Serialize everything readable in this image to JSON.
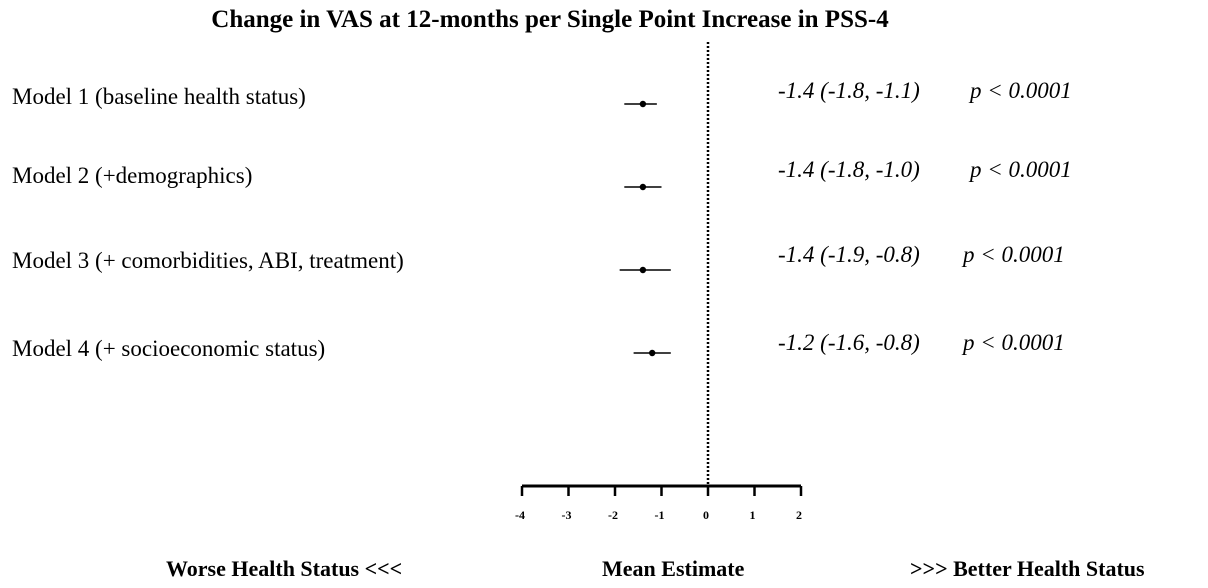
{
  "title": "Change in VAS at 12-months per Single Point Increase in PSS-4",
  "footer": {
    "left": "Worse Health Status <<<",
    "center": "Mean Estimate",
    "right": ">>> Better Health Status"
  },
  "chart_data": {
    "type": "forest",
    "title": "Change in VAS at 12-months per Single Point Increase in PSS-4",
    "xlim": [
      -4,
      2
    ],
    "xticks": [
      -4,
      -3,
      -2,
      -1,
      0,
      1,
      2
    ],
    "reference_line": 0,
    "xlabel": "Mean Estimate",
    "rows": [
      {
        "label": "Model 1 (baseline health status)",
        "estimate": -1.4,
        "lower": -1.8,
        "upper": -1.1,
        "ci_text": "-1.4 (-1.8, -1.1)",
        "p_text": "p < 0.0001"
      },
      {
        "label": "Model 2 (+demographics)",
        "estimate": -1.4,
        "lower": -1.8,
        "upper": -1.0,
        "ci_text": "-1.4 (-1.8, -1.0)",
        "p_text": "p < 0.0001"
      },
      {
        "label": "Model 3 (+ comorbidities, ABI, treatment)",
        "estimate": -1.4,
        "lower": -1.9,
        "upper": -0.8,
        "ci_text": "-1.4 (-1.9, -0.8)",
        "p_text": "p < 0.0001"
      },
      {
        "label": "Model 4 (+ socioeconomic status)",
        "estimate": -1.2,
        "lower": -1.6,
        "upper": -0.8,
        "ci_text": "-1.2 (-1.6, -0.8)",
        "p_text": "p < 0.0001"
      }
    ]
  }
}
